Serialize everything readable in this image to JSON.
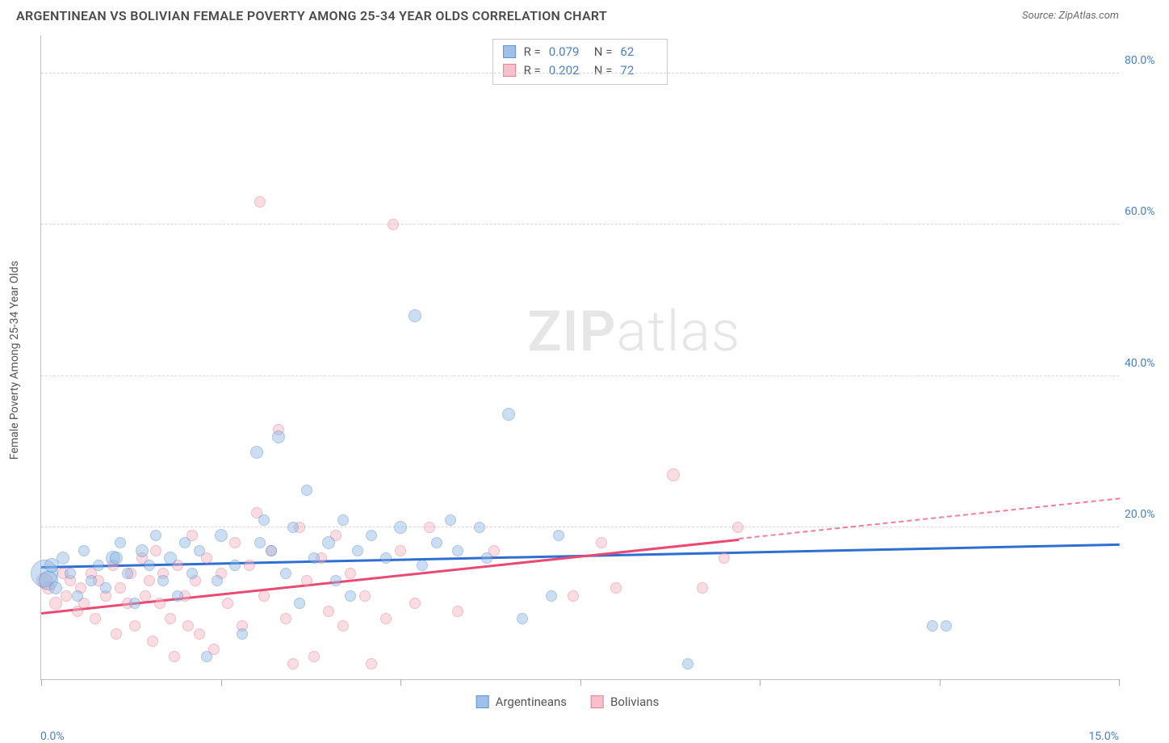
{
  "title": "ARGENTINEAN VS BOLIVIAN FEMALE POVERTY AMONG 25-34 YEAR OLDS CORRELATION CHART",
  "source": "Source: ZipAtlas.com",
  "watermark": {
    "bold": "ZIP",
    "light": "atlas"
  },
  "stats": {
    "r_label": "R =",
    "n_label": "N ="
  },
  "chart": {
    "type": "scatter",
    "background_color": "#ffffff",
    "grid_color": "#d8d8d8",
    "axis_color": "#c0c0c0",
    "tick_label_color": "#4a7fc8",
    "label_fontsize": 14,
    "xlim": [
      0,
      15
    ],
    "ylim": [
      0,
      85
    ],
    "x_min_label": "0.0%",
    "x_max_label": "15.0%",
    "xticks": [
      0,
      2.5,
      5,
      7.5,
      10,
      12.5,
      15
    ],
    "yticks": [
      {
        "v": 20,
        "label": "20.0%"
      },
      {
        "v": 40,
        "label": "40.0%"
      },
      {
        "v": 60,
        "label": "60.0%"
      },
      {
        "v": 80,
        "label": "80.0%"
      }
    ],
    "ylabel": "Female Poverty Among 25-34 Year Olds",
    "marker_radius_min": 5,
    "marker_radius_max": 17,
    "series": [
      {
        "key": "argentineans",
        "label": "Argentineans",
        "r": "0.079",
        "n": "62",
        "fill_color": "#8db7e4",
        "fill_opacity": 0.45,
        "stroke_color": "#4a7fc8",
        "trend_color": "#2e6fd1",
        "trend": {
          "x1": 0,
          "y1": 15.0,
          "x2": 15,
          "y2": 18.0,
          "solid_until_x": 15
        },
        "points": [
          [
            0.05,
            14,
            17
          ],
          [
            0.1,
            13,
            12
          ],
          [
            0.15,
            15,
            9
          ],
          [
            0.2,
            12,
            8
          ],
          [
            0.3,
            16,
            8
          ],
          [
            0.4,
            14,
            7
          ],
          [
            0.5,
            11,
            7
          ],
          [
            0.6,
            17,
            7
          ],
          [
            0.7,
            13,
            7
          ],
          [
            0.8,
            15,
            7
          ],
          [
            0.9,
            12,
            7
          ],
          [
            1.0,
            16,
            9
          ],
          [
            1.1,
            18,
            7
          ],
          [
            1.2,
            14,
            7
          ],
          [
            1.3,
            10,
            7
          ],
          [
            1.4,
            17,
            8
          ],
          [
            1.5,
            15,
            7
          ],
          [
            1.6,
            19,
            7
          ],
          [
            1.7,
            13,
            7
          ],
          [
            1.8,
            16,
            8
          ],
          [
            1.9,
            11,
            7
          ],
          [
            2.0,
            18,
            7
          ],
          [
            2.1,
            14,
            7
          ],
          [
            2.2,
            17,
            7
          ],
          [
            2.3,
            3,
            7
          ],
          [
            2.5,
            19,
            8
          ],
          [
            2.7,
            15,
            7
          ],
          [
            2.8,
            6,
            7
          ],
          [
            3.0,
            30,
            8
          ],
          [
            3.1,
            21,
            7
          ],
          [
            3.2,
            17,
            7
          ],
          [
            3.3,
            32,
            8
          ],
          [
            3.4,
            14,
            7
          ],
          [
            3.5,
            20,
            7
          ],
          [
            3.6,
            10,
            7
          ],
          [
            3.7,
            25,
            7
          ],
          [
            3.8,
            16,
            7
          ],
          [
            4.0,
            18,
            8
          ],
          [
            4.1,
            13,
            7
          ],
          [
            4.2,
            21,
            7
          ],
          [
            4.4,
            17,
            7
          ],
          [
            4.6,
            19,
            7
          ],
          [
            4.8,
            16,
            7
          ],
          [
            5.0,
            20,
            8
          ],
          [
            5.2,
            48,
            8
          ],
          [
            5.3,
            15,
            7
          ],
          [
            5.5,
            18,
            7
          ],
          [
            5.7,
            21,
            7
          ],
          [
            5.8,
            17,
            7
          ],
          [
            6.1,
            20,
            7
          ],
          [
            6.2,
            16,
            7
          ],
          [
            6.5,
            35,
            8
          ],
          [
            6.7,
            8,
            7
          ],
          [
            7.1,
            11,
            7
          ],
          [
            7.2,
            19,
            7
          ],
          [
            9.0,
            2,
            7
          ],
          [
            12.4,
            7,
            7
          ],
          [
            12.6,
            7,
            7
          ],
          [
            1.05,
            16,
            8
          ],
          [
            2.45,
            13,
            7
          ],
          [
            3.05,
            18,
            7
          ],
          [
            4.3,
            11,
            7
          ]
        ]
      },
      {
        "key": "bolivians",
        "label": "Bolivians",
        "r": "0.202",
        "n": "72",
        "fill_color": "#f4b6c2",
        "fill_opacity": 0.45,
        "stroke_color": "#e56b87",
        "trend_color": "#e94a74",
        "trend": {
          "x1": 0,
          "y1": 9.0,
          "x2": 15,
          "y2": 24.0,
          "solid_until_x": 9.7
        },
        "points": [
          [
            0.05,
            13,
            10
          ],
          [
            0.1,
            12,
            8
          ],
          [
            0.2,
            10,
            8
          ],
          [
            0.3,
            14,
            7
          ],
          [
            0.35,
            11,
            7
          ],
          [
            0.4,
            13,
            7
          ],
          [
            0.5,
            9,
            7
          ],
          [
            0.55,
            12,
            7
          ],
          [
            0.6,
            10,
            7
          ],
          [
            0.7,
            14,
            7
          ],
          [
            0.75,
            8,
            7
          ],
          [
            0.8,
            13,
            7
          ],
          [
            0.9,
            11,
            7
          ],
          [
            1.0,
            15,
            7
          ],
          [
            1.05,
            6,
            7
          ],
          [
            1.1,
            12,
            7
          ],
          [
            1.2,
            10,
            7
          ],
          [
            1.25,
            14,
            7
          ],
          [
            1.3,
            7,
            7
          ],
          [
            1.4,
            16,
            7
          ],
          [
            1.45,
            11,
            7
          ],
          [
            1.5,
            13,
            7
          ],
          [
            1.55,
            5,
            7
          ],
          [
            1.6,
            17,
            7
          ],
          [
            1.65,
            10,
            7
          ],
          [
            1.7,
            14,
            7
          ],
          [
            1.8,
            8,
            7
          ],
          [
            1.85,
            3,
            7
          ],
          [
            1.9,
            15,
            7
          ],
          [
            2.0,
            11,
            7
          ],
          [
            2.05,
            7,
            7
          ],
          [
            2.1,
            19,
            7
          ],
          [
            2.15,
            13,
            7
          ],
          [
            2.2,
            6,
            7
          ],
          [
            2.3,
            16,
            7
          ],
          [
            2.4,
            4,
            7
          ],
          [
            2.5,
            14,
            7
          ],
          [
            2.6,
            10,
            7
          ],
          [
            2.7,
            18,
            7
          ],
          [
            2.8,
            7,
            7
          ],
          [
            2.9,
            15,
            7
          ],
          [
            3.0,
            22,
            7
          ],
          [
            3.05,
            63,
            7
          ],
          [
            3.1,
            11,
            7
          ],
          [
            3.2,
            17,
            7
          ],
          [
            3.3,
            33,
            7
          ],
          [
            3.4,
            8,
            7
          ],
          [
            3.5,
            2,
            7
          ],
          [
            3.6,
            20,
            7
          ],
          [
            3.7,
            13,
            7
          ],
          [
            3.8,
            3,
            7
          ],
          [
            3.9,
            16,
            7
          ],
          [
            4.0,
            9,
            7
          ],
          [
            4.1,
            19,
            7
          ],
          [
            4.2,
            7,
            7
          ],
          [
            4.3,
            14,
            7
          ],
          [
            4.5,
            11,
            7
          ],
          [
            4.6,
            2,
            7
          ],
          [
            4.8,
            8,
            7
          ],
          [
            4.9,
            60,
            7
          ],
          [
            5.0,
            17,
            7
          ],
          [
            5.2,
            10,
            7
          ],
          [
            5.4,
            20,
            7
          ],
          [
            5.8,
            9,
            7
          ],
          [
            6.3,
            17,
            7
          ],
          [
            7.4,
            11,
            7
          ],
          [
            7.8,
            18,
            7
          ],
          [
            8.0,
            12,
            7
          ],
          [
            8.8,
            27,
            8
          ],
          [
            9.2,
            12,
            7
          ],
          [
            9.5,
            16,
            7
          ],
          [
            9.7,
            20,
            7
          ]
        ]
      }
    ]
  }
}
